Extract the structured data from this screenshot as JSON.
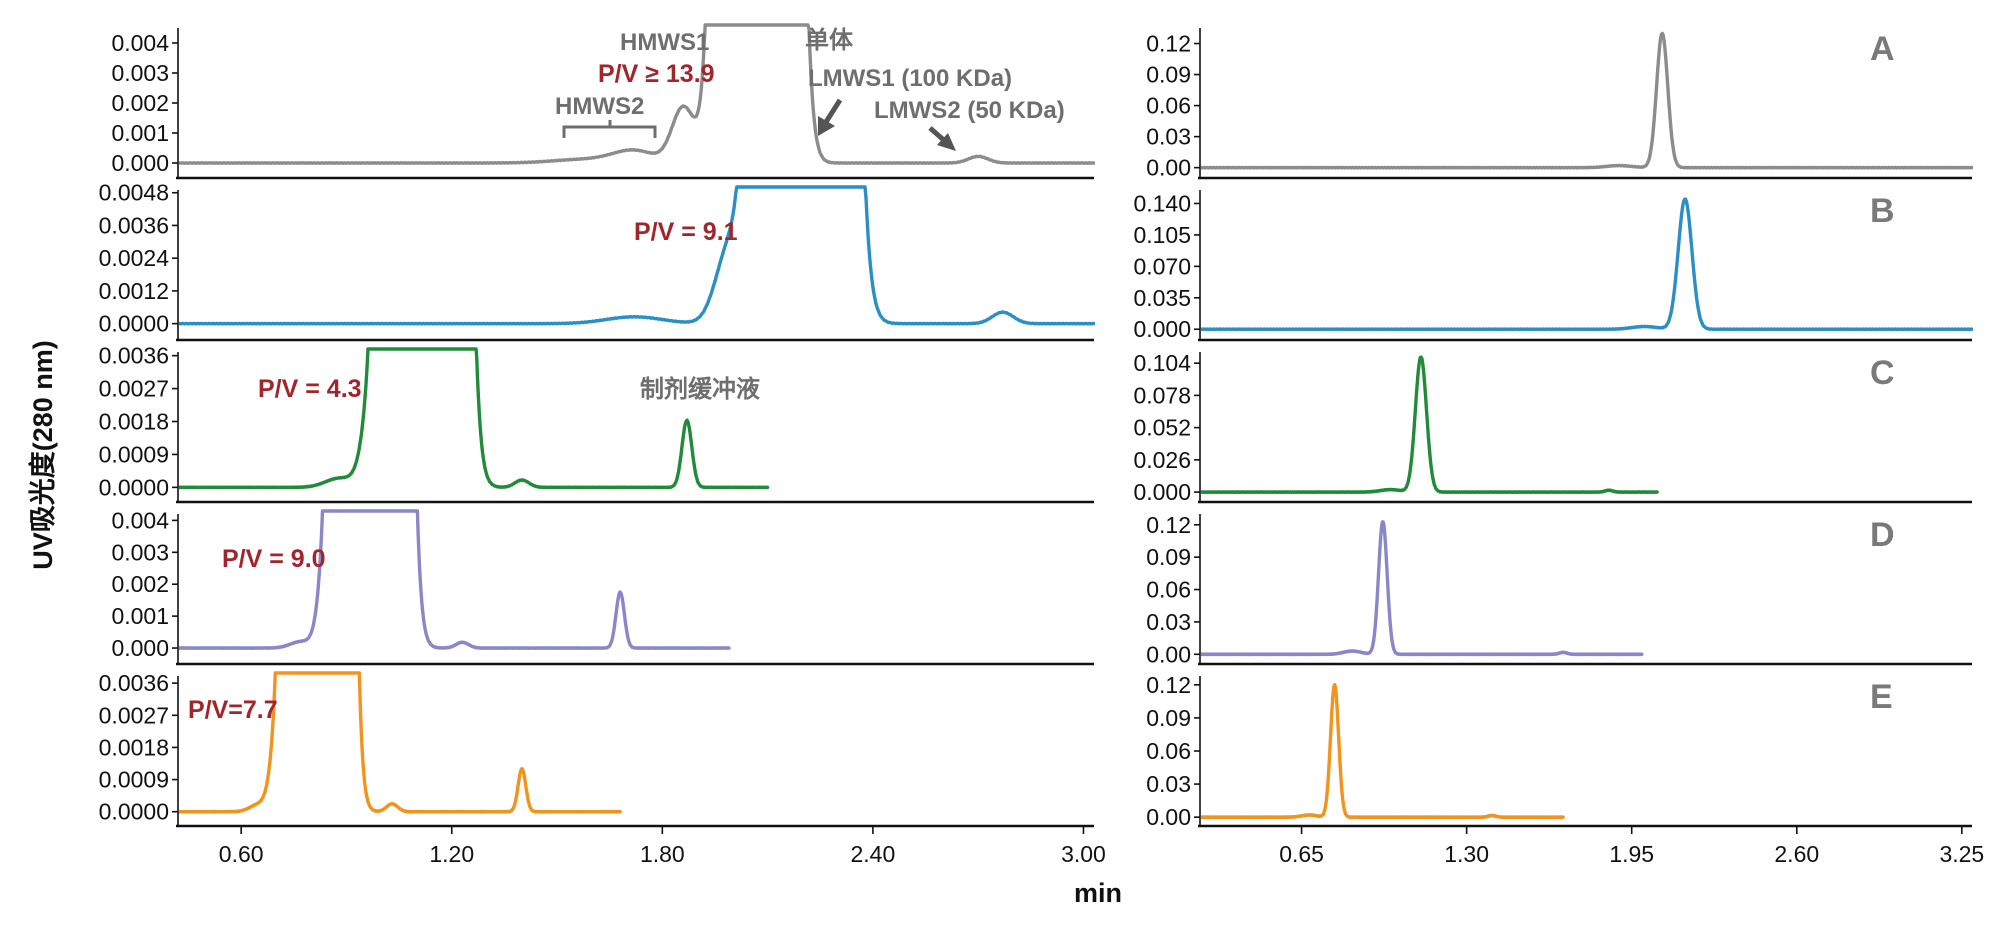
{
  "chart_data": {
    "type": "line",
    "ylabel": "UV吸光度(280 nm)",
    "xlabel": "min",
    "left": {
      "xlim": [
        0.42,
        3.03
      ],
      "xticks": [
        "0.60",
        "1.20",
        "1.80",
        "2.40",
        "3.00"
      ],
      "xtick_values": [
        0.6,
        1.2,
        1.8,
        2.4,
        3.0
      ]
    },
    "right": {
      "xlim": [
        0.25,
        3.29
      ],
      "xticks": [
        "0.65",
        "1.30",
        "1.95",
        "2.60",
        "3.25"
      ],
      "xtick_values": [
        0.65,
        1.3,
        1.95,
        2.6,
        3.25
      ]
    },
    "series": [
      {
        "name": "A",
        "color": "#8c8c8c",
        "left": {
          "ylim": [
            -0.0005,
            0.0045
          ],
          "yticks": [
            "0.004",
            "0.003",
            "0.002",
            "0.001",
            "0.000"
          ],
          "ytick_values": [
            0.004,
            0.003,
            0.002,
            0.001,
            0.0
          ],
          "x_end": 3.03,
          "baseline": 0.0,
          "peaks": [
            {
              "x": 1.58,
              "h": 0.00012,
              "w": 0.09
            },
            {
              "x": 1.72,
              "h": 0.0004,
              "w": 0.06
            },
            {
              "x": 1.86,
              "h": 0.00185,
              "w": 0.032
            },
            {
              "x": 2.07,
              "h": 1.0,
              "w": 0.045
            },
            {
              "x": 2.7,
              "h": 0.00022,
              "w": 0.028
            }
          ]
        },
        "right": {
          "ylim": [
            -0.01,
            0.135
          ],
          "yticks": [
            "0.12",
            "0.09",
            "0.06",
            "0.03",
            "0.00"
          ],
          "ytick_values": [
            0.12,
            0.09,
            0.06,
            0.03,
            0.0
          ],
          "x_end": 3.29,
          "peaks": [
            {
              "x": 1.9,
              "h": 0.002,
              "w": 0.05
            },
            {
              "x": 2.07,
              "h": 0.13,
              "w": 0.022
            }
          ]
        },
        "annotations": {
          "letter": "A",
          "hmws1": "HMWS1",
          "pv": "P/V ≥ 13.9",
          "hmws2": "HMWS2",
          "monomer": "单体",
          "lmws1": "LMWS1 (100 KDa)",
          "lmws2": "LMWS2 (50 KDa)"
        }
      },
      {
        "name": "B",
        "color": "#2a8fc4",
        "left": {
          "ylim": [
            -0.0006,
            0.0049
          ],
          "yticks": [
            "0.0048",
            "0.0036",
            "0.0024",
            "0.0012",
            "0.0000"
          ],
          "ytick_values": [
            0.0048,
            0.0036,
            0.0024,
            0.0012,
            0.0
          ],
          "x_end": 3.03,
          "baseline": 0.0,
          "peaks": [
            {
              "x": 1.72,
              "h": 0.00025,
              "w": 0.08
            },
            {
              "x": 1.99,
              "h": 0.00265,
              "w": 0.038
            },
            {
              "x": 2.2,
              "h": 1.0,
              "w": 0.055
            },
            {
              "x": 2.77,
              "h": 0.00042,
              "w": 0.03
            }
          ]
        },
        "right": {
          "ylim": [
            -0.012,
            0.155
          ],
          "yticks": [
            "0.140",
            "0.105",
            "0.070",
            "0.035",
            "0.000"
          ],
          "ytick_values": [
            0.14,
            0.105,
            0.07,
            0.035,
            0.0
          ],
          "x_end": 3.29,
          "peaks": [
            {
              "x": 2.0,
              "h": 0.003,
              "w": 0.05
            },
            {
              "x": 2.16,
              "h": 0.145,
              "w": 0.027
            }
          ]
        },
        "annotations": {
          "letter": "B",
          "pv": "P/V = 9.1"
        }
      },
      {
        "name": "C",
        "color": "#228b3a",
        "left": {
          "ylim": [
            -0.0004,
            0.0037
          ],
          "yticks": [
            "0.0036",
            "0.0027",
            "0.0018",
            "0.0009",
            "0.0000"
          ],
          "ytick_values": [
            0.0036,
            0.0027,
            0.0018,
            0.0009,
            0.0
          ],
          "x_end": 2.1,
          "baseline": 0.0,
          "peaks": [
            {
              "x": 0.88,
              "h": 0.00025,
              "w": 0.04
            },
            {
              "x": 0.98,
              "h": 0.0021,
              "w": 0.03
            },
            {
              "x": 1.12,
              "h": 1.0,
              "w": 0.045
            },
            {
              "x": 1.4,
              "h": 0.0002,
              "w": 0.02
            },
            {
              "x": 1.87,
              "h": 0.00183,
              "w": 0.014
            }
          ]
        },
        "right": {
          "ylim": [
            -0.008,
            0.113
          ],
          "yticks": [
            "0.104",
            "0.078",
            "0.052",
            "0.026",
            "0.000"
          ],
          "ytick_values": [
            0.104,
            0.078,
            0.052,
            0.026,
            0.0
          ],
          "x_end": 2.05,
          "peaks": [
            {
              "x": 1.0,
              "h": 0.002,
              "w": 0.04
            },
            {
              "x": 1.12,
              "h": 0.109,
              "w": 0.022
            },
            {
              "x": 1.86,
              "h": 0.0015,
              "w": 0.015
            }
          ]
        },
        "annotations": {
          "letter": "C",
          "pv": "P/V = 4.3",
          "buffer": "制剂缓冲液"
        }
      },
      {
        "name": "D",
        "color": "#8a87c8",
        "left": {
          "ylim": [
            -0.0005,
            0.0042
          ],
          "yticks": [
            "0.004",
            "0.003",
            "0.002",
            "0.001",
            "0.000"
          ],
          "ytick_values": [
            0.004,
            0.003,
            0.002,
            0.001,
            0.0
          ],
          "x_end": 1.99,
          "baseline": 0.0,
          "peaks": [
            {
              "x": 0.77,
              "h": 0.0002,
              "w": 0.03
            },
            {
              "x": 0.85,
              "h": 0.00225,
              "w": 0.024
            },
            {
              "x": 0.97,
              "h": 1.0,
              "w": 0.04
            },
            {
              "x": 1.23,
              "h": 0.00018,
              "w": 0.018
            },
            {
              "x": 1.68,
              "h": 0.00175,
              "w": 0.012
            }
          ]
        },
        "right": {
          "ylim": [
            -0.009,
            0.13
          ],
          "yticks": [
            "0.12",
            "0.09",
            "0.06",
            "0.03",
            "0.00"
          ],
          "ytick_values": [
            0.12,
            0.09,
            0.06,
            0.03,
            0.0
          ],
          "x_end": 1.99,
          "peaks": [
            {
              "x": 0.85,
              "h": 0.003,
              "w": 0.035
            },
            {
              "x": 0.97,
              "h": 0.123,
              "w": 0.017
            },
            {
              "x": 1.68,
              "h": 0.0018,
              "w": 0.015
            }
          ]
        },
        "annotations": {
          "letter": "D",
          "pv": "P/V = 9.0"
        }
      },
      {
        "name": "E",
        "color": "#f0941e",
        "left": {
          "ylim": [
            -0.0004,
            0.0038
          ],
          "yticks": [
            "0.0036",
            "0.0027",
            "0.0018",
            "0.0009",
            "0.0000"
          ],
          "ytick_values": [
            0.0036,
            0.0027,
            0.0018,
            0.0009,
            0.0
          ],
          "x_end": 1.68,
          "baseline": 0.0,
          "peaks": [
            {
              "x": 0.65,
              "h": 0.0002,
              "w": 0.025
            },
            {
              "x": 0.71,
              "h": 0.00205,
              "w": 0.022
            },
            {
              "x": 0.82,
              "h": 1.0,
              "w": 0.035
            },
            {
              "x": 1.03,
              "h": 0.00022,
              "w": 0.016
            },
            {
              "x": 1.4,
              "h": 0.0012,
              "w": 0.011
            }
          ]
        },
        "right": {
          "ylim": [
            -0.008,
            0.128
          ],
          "yticks": [
            "0.12",
            "0.09",
            "0.06",
            "0.03",
            "0.00"
          ],
          "ytick_values": [
            0.12,
            0.09,
            0.06,
            0.03,
            0.0
          ],
          "x_end": 1.68,
          "peaks": [
            {
              "x": 0.68,
              "h": 0.002,
              "w": 0.03
            },
            {
              "x": 0.78,
              "h": 0.12,
              "w": 0.016
            },
            {
              "x": 1.4,
              "h": 0.0015,
              "w": 0.015
            }
          ]
        },
        "annotations": {
          "letter": "E",
          "pv": "P/V=7.7"
        }
      }
    ]
  }
}
